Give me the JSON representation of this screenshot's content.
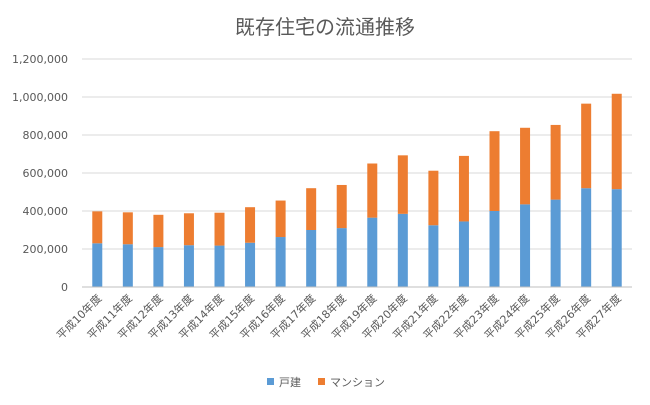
{
  "chart_data": {
    "type": "bar",
    "stacked": true,
    "title": "既存住宅の流通推移",
    "xlabel": "",
    "ylabel": "",
    "ylim": [
      0,
      1200000
    ],
    "yticks": [
      0,
      200000,
      400000,
      600000,
      800000,
      1000000,
      1200000
    ],
    "ytick_labels": [
      "0",
      "200,000",
      "400,000",
      "600,000",
      "800,000",
      "1,000,000",
      "1,200,000"
    ],
    "grid": true,
    "legend_position": "bottom",
    "categories": [
      "平成10年度",
      "平成11年度",
      "平成12年度",
      "平成13年度",
      "平成14年度",
      "平成15年度",
      "平成16年度",
      "平成17年度",
      "平成18年度",
      "平成19年度",
      "平成20年度",
      "平成21年度",
      "平成22年度",
      "平成23年度",
      "平成24年度",
      "平成25年度",
      "平成26年度",
      "平成27年度"
    ],
    "series": [
      {
        "name": "戸建",
        "color": "#5B9BD5",
        "values": [
          230000,
          225000,
          210000,
          220000,
          218000,
          233000,
          263000,
          300000,
          310000,
          365000,
          385000,
          325000,
          345000,
          400000,
          435000,
          460000,
          520000,
          515000
        ]
      },
      {
        "name": "マンション",
        "color": "#ED7D31",
        "values": [
          168000,
          168000,
          170000,
          168000,
          173000,
          187000,
          192000,
          220000,
          227000,
          285000,
          308000,
          287000,
          345000,
          420000,
          403000,
          393000,
          445000,
          502000
        ]
      }
    ]
  }
}
